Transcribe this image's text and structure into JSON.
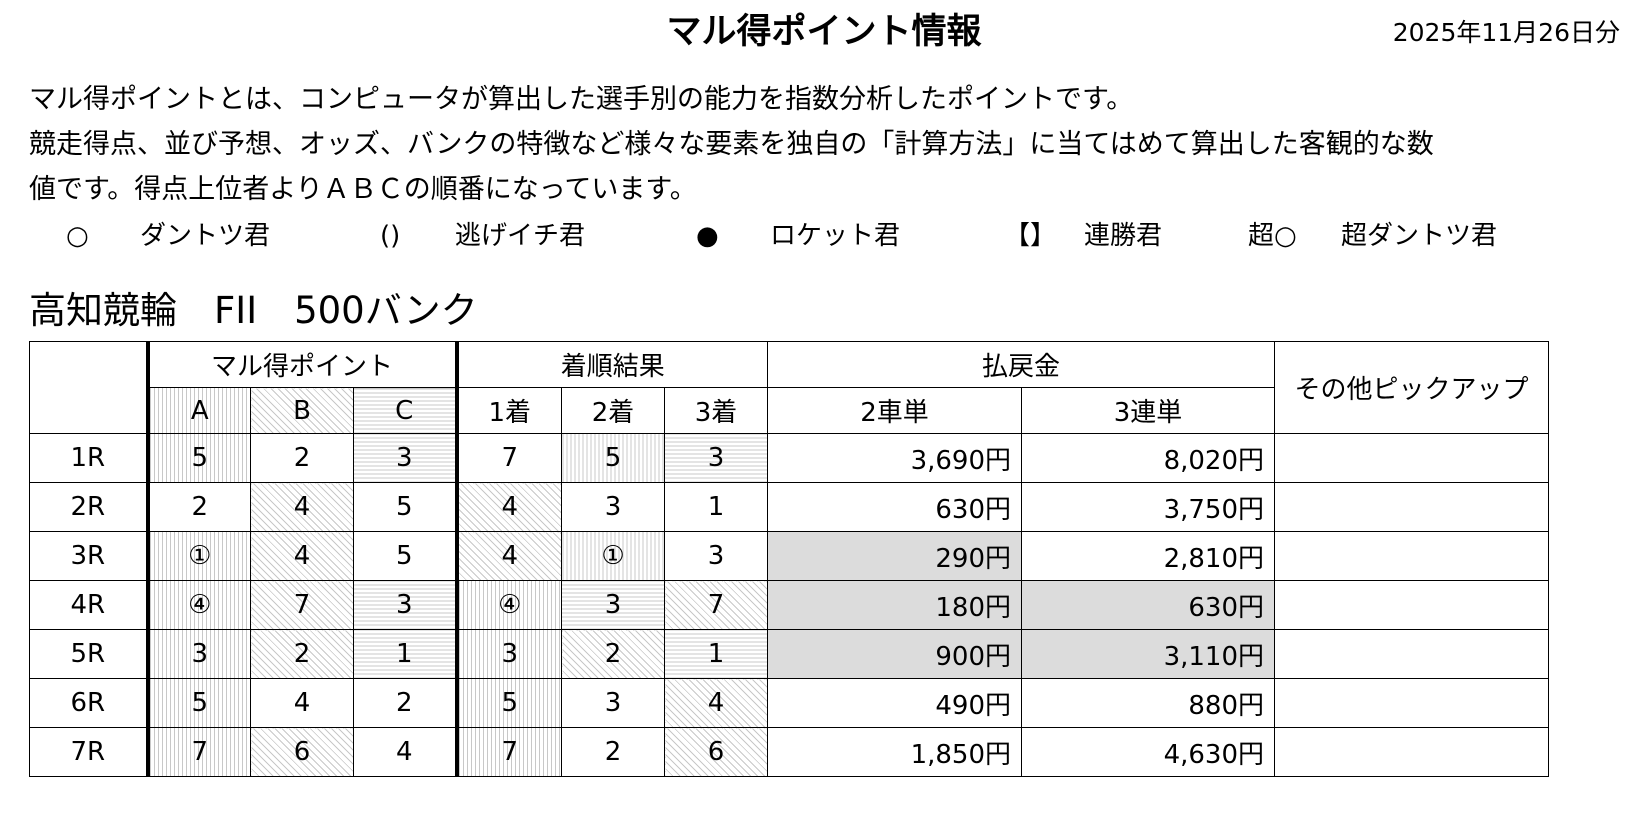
{
  "header": {
    "title": "マル得ポイント情報",
    "date": "2025年11月26日分"
  },
  "description": [
    "マル得ポイントとは、コンピュータが算出した選手別の能力を指数分析したポイントです。",
    "競走得点、並び予想、オッズ、バンクの特徴など様々な要素を独自の「計算方法」に当てはめて算出した客観的な数",
    "値です。得点上位者よりＡＢＣの順番になっています。"
  ],
  "legend": [
    {
      "symbol": "○",
      "label": "ダントツ君"
    },
    {
      "symbol": "()",
      "label": "逃げイチ君"
    },
    {
      "symbol": "●",
      "label": "ロケット君"
    },
    {
      "symbol": "【】",
      "label": "連勝君"
    },
    {
      "symbol": "超○",
      "label": "超ダントツ君"
    }
  ],
  "venue": "高知競輪　FII　500バンク",
  "table": {
    "header_groups": [
      "マル得ポイント",
      "着順結果",
      "払戻金",
      "その他ピックアップ"
    ],
    "subheaders": [
      "A",
      "B",
      "C",
      "1着",
      "2着",
      "3着",
      "2車単",
      "3連単"
    ],
    "rows": [
      [
        "1R",
        "5",
        "2",
        "3",
        "7",
        "5",
        "3",
        "3,690円",
        "8,020円"
      ],
      [
        "2R",
        "2",
        "4",
        "5",
        "4",
        "3",
        "1",
        "630円",
        "3,750円"
      ],
      [
        "3R",
        "①",
        "4",
        "5",
        "4",
        "①",
        "3",
        "290円",
        "2,810円"
      ],
      [
        "4R",
        "④",
        "7",
        "3",
        "④",
        "3",
        "7",
        "180円",
        "630円"
      ],
      [
        "5R",
        "3",
        "2",
        "1",
        "3",
        "2",
        "1",
        "900円",
        "3,110円"
      ],
      [
        "6R",
        "5",
        "4",
        "2",
        "5",
        "3",
        "4",
        "490円",
        "880円"
      ],
      [
        "7R",
        "7",
        "6",
        "4",
        "7",
        "2",
        "6",
        "1,850円",
        "4,630円"
      ]
    ]
  }
}
